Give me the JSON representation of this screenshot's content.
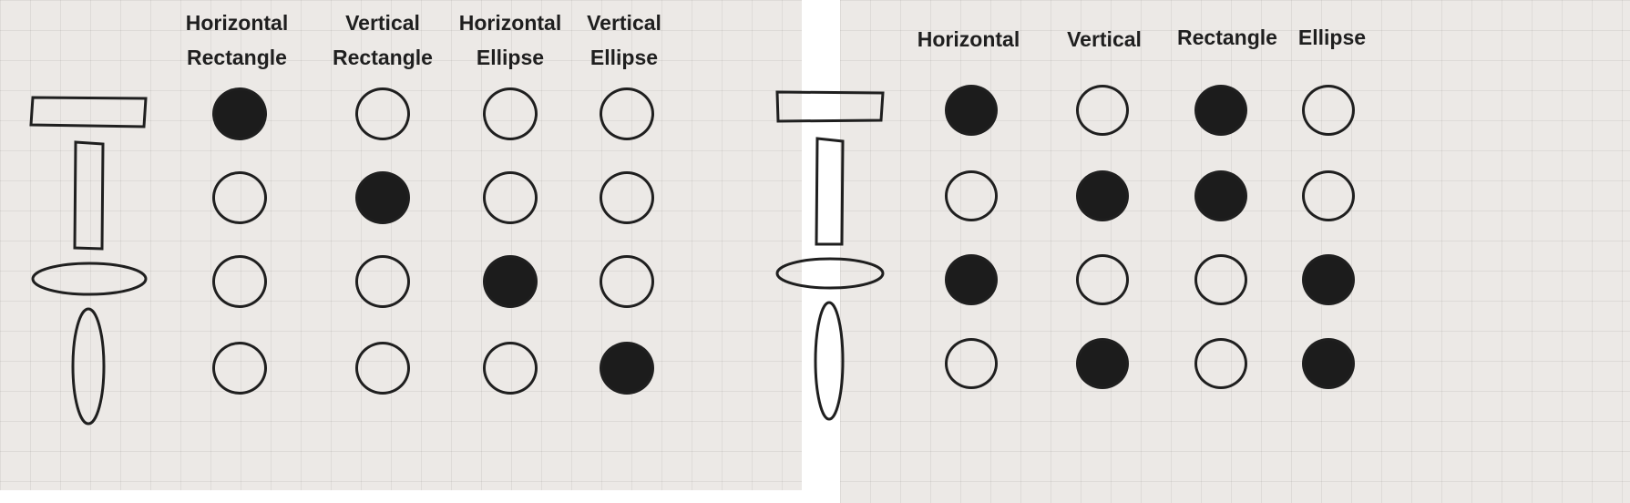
{
  "diagrams": [
    {
      "id": "left",
      "columns": [
        "Horizontal\nRectangle",
        "Vertical\nRectangle",
        "Horizontal\nEllipse",
        "Vertical\nEllipse"
      ],
      "row_shapes": [
        "horizontal-rectangle",
        "vertical-rectangle",
        "horizontal-ellipse",
        "vertical-ellipse"
      ],
      "grid": [
        [
          1,
          0,
          0,
          0
        ],
        [
          0,
          1,
          0,
          0
        ],
        [
          0,
          0,
          1,
          0
        ],
        [
          0,
          0,
          0,
          1
        ]
      ]
    },
    {
      "id": "right",
      "columns": [
        "Horizontal",
        "Vertical",
        "Rectangle",
        "Ellipse"
      ],
      "row_shapes": [
        "horizontal-rectangle",
        "vertical-rectangle",
        "horizontal-ellipse",
        "vertical-ellipse"
      ],
      "grid": [
        [
          1,
          0,
          1,
          0
        ],
        [
          0,
          1,
          1,
          0
        ],
        [
          1,
          0,
          0,
          1
        ],
        [
          0,
          1,
          0,
          1
        ]
      ]
    }
  ],
  "colors": {
    "ink": "#1f1f1f",
    "paper": "#ece9e6"
  }
}
